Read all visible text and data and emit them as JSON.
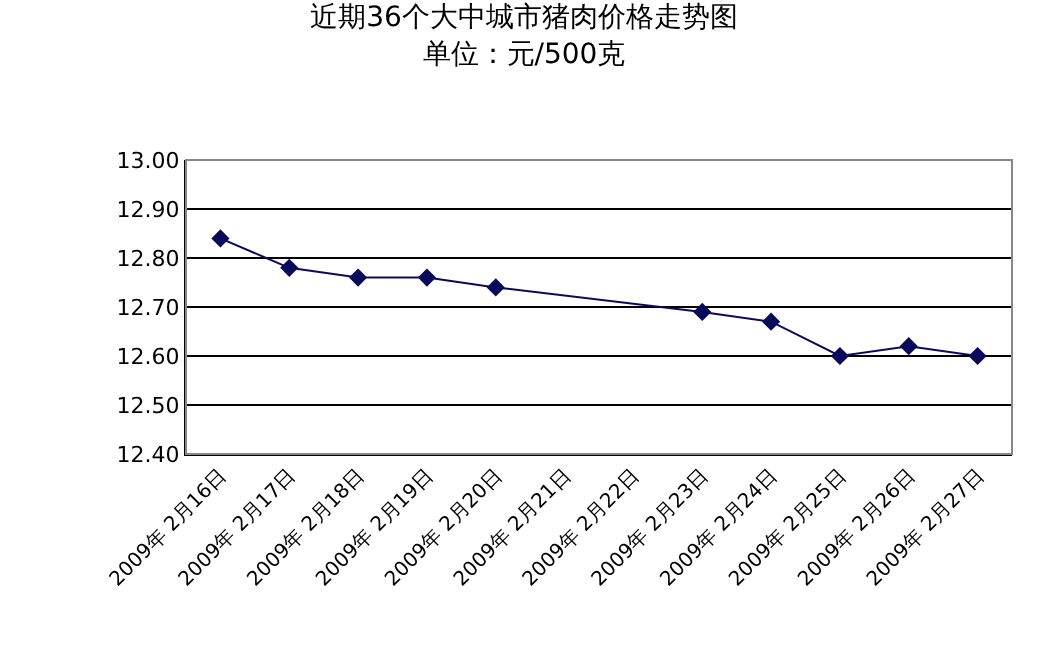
{
  "chart_data": {
    "type": "line",
    "title": "近期36个大中城市猪肉价格走势图",
    "subtitle": "单位：元/500克",
    "categories": [
      "2009年 2月16日",
      "2009年 2月17日",
      "2009年 2月18日",
      "2009年 2月19日",
      "2009年 2月20日",
      "2009年 2月21日",
      "2009年 2月22日",
      "2009年 2月23日",
      "2009年 2月24日",
      "2009年 2月25日",
      "2009年 2月26日",
      "2009年 2月27日"
    ],
    "series": [
      {
        "color": "#0a0a5a",
        "values": [
          12.84,
          12.78,
          12.76,
          12.76,
          12.74,
          null,
          null,
          12.69,
          12.67,
          12.6,
          12.62,
          12.6
        ]
      }
    ],
    "ylim": [
      12.4,
      13.0
    ],
    "yticks": [
      {
        "value": 12.4,
        "label": "12.40"
      },
      {
        "value": 12.5,
        "label": "12.50"
      },
      {
        "value": 12.6,
        "label": "12.60"
      },
      {
        "value": 12.7,
        "label": "12.70"
      },
      {
        "value": 12.8,
        "label": "12.80"
      },
      {
        "value": 12.9,
        "label": "12.90"
      },
      {
        "value": 13.0,
        "label": "13.00"
      }
    ],
    "grid": "y",
    "marker": "diamond",
    "line_style": "solid"
  }
}
